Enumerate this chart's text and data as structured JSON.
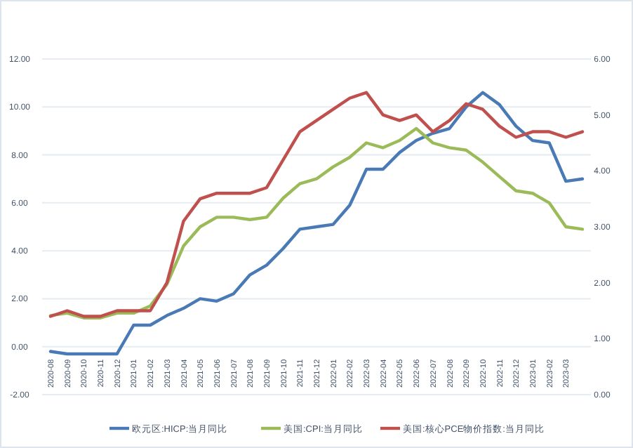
{
  "chart_data": {
    "type": "line",
    "categories": [
      "2020-08",
      "2020-09",
      "2020-10",
      "2020-11",
      "2020-12",
      "2021-01",
      "2021-02",
      "2021-03",
      "2021-04",
      "2021-05",
      "2021-06",
      "2021-07",
      "2021-08",
      "2021-09",
      "2021-10",
      "2021-11",
      "2021-12",
      "2022-01",
      "2022-02",
      "2022-03",
      "2022-04",
      "2022-05",
      "2022-06",
      "2022-07",
      "2022-08",
      "2022-09",
      "2022-10",
      "2022-11",
      "2022-12",
      "2023-01",
      "2023-02",
      "2023-03",
      null
    ],
    "series": [
      {
        "name": "欧元区:HICP:当月同比",
        "color": "#4a7ab5",
        "values": [
          -0.2,
          -0.3,
          -0.3,
          -0.3,
          -0.3,
          0.9,
          0.9,
          1.3,
          1.6,
          2.0,
          1.9,
          2.2,
          3.0,
          3.4,
          4.1,
          4.9,
          5.0,
          5.1,
          5.9,
          7.4,
          7.4,
          8.1,
          8.6,
          8.9,
          9.1,
          10.0,
          10.6,
          10.1,
          9.2,
          8.6,
          8.5,
          6.9,
          7.0
        ]
      },
      {
        "name": "美国:CPI:当月同比",
        "color": "#9bbb59",
        "values": [
          1.3,
          1.4,
          1.2,
          1.2,
          1.4,
          1.4,
          1.7,
          2.6,
          4.2,
          5.0,
          5.4,
          5.4,
          5.3,
          5.4,
          6.2,
          6.8,
          7.0,
          7.5,
          7.9,
          8.5,
          8.3,
          8.6,
          9.1,
          8.5,
          8.3,
          8.2,
          7.7,
          7.1,
          6.5,
          6.4,
          6.0,
          5.0,
          4.9
        ]
      },
      {
        "name": "美国:核心PCE物价指数:当月同比",
        "color": "#c0504d",
        "axis": "y2",
        "values": [
          1.4,
          1.5,
          1.4,
          1.4,
          1.5,
          1.5,
          1.5,
          2.0,
          3.1,
          3.5,
          3.6,
          3.6,
          3.6,
          3.7,
          4.2,
          4.7,
          4.9,
          5.1,
          5.3,
          5.4,
          5.0,
          4.9,
          5.0,
          4.7,
          4.9,
          5.2,
          5.1,
          4.8,
          4.6,
          4.7,
          4.7,
          4.6,
          4.7
        ]
      }
    ],
    "ylim": [
      -2,
      12
    ],
    "yticks": [
      {
        "value": -2,
        "label": "-2.00"
      },
      {
        "value": 0,
        "label": "0.00"
      },
      {
        "value": 2,
        "label": "2.00"
      },
      {
        "value": 4,
        "label": "4.00"
      },
      {
        "value": 6,
        "label": "6.00"
      },
      {
        "value": 8,
        "label": "8.00"
      },
      {
        "value": 10,
        "label": "10.00"
      },
      {
        "value": 12,
        "label": "12.00"
      }
    ],
    "y2lim": [
      0,
      6
    ],
    "y2ticks": [
      {
        "value": 0,
        "label": "0.00"
      },
      {
        "value": 1,
        "label": "1.00"
      },
      {
        "value": 2,
        "label": "2.00"
      },
      {
        "value": 3,
        "label": "3.00"
      },
      {
        "value": 4,
        "label": "4.00"
      },
      {
        "value": 5,
        "label": "5.00"
      },
      {
        "value": 6,
        "label": "6.00"
      }
    ],
    "grid": "y",
    "legend": "bottom"
  }
}
